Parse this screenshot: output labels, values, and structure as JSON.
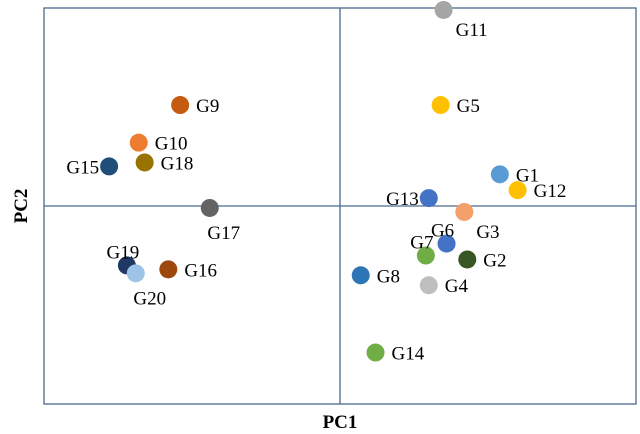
{
  "chart_data": {
    "type": "scatter",
    "title": "",
    "xlabel": "PC1",
    "ylabel": "PC2",
    "xlim": [
      -10,
      10
    ],
    "ylim": [
      -10,
      10
    ],
    "grid": false,
    "legend": "none",
    "axis_color": "#4a6b8f",
    "points": [
      {
        "label": "G1",
        "x": 5.4,
        "y": 1.6,
        "color": "#5b9bd5",
        "label_side": "right"
      },
      {
        "label": "G2",
        "x": 4.3,
        "y": -2.7,
        "color": "#375623",
        "label_side": "right"
      },
      {
        "label": "G3",
        "x": 4.2,
        "y": -0.3,
        "color": "#f4a06b",
        "label_side": "below-right"
      },
      {
        "label": "G4",
        "x": 3.0,
        "y": -4.0,
        "color": "#bfbfbf",
        "label_side": "right"
      },
      {
        "label": "G5",
        "x": 3.4,
        "y": 5.1,
        "color": "#ffc000",
        "label_side": "right"
      },
      {
        "label": "G6",
        "x": 3.6,
        "y": -1.9,
        "color": "#4472c4",
        "label_side": "above-left"
      },
      {
        "label": "G7",
        "x": 2.9,
        "y": -2.5,
        "color": "#70ad47",
        "label_side": "above-left"
      },
      {
        "label": "G8",
        "x": 0.7,
        "y": -3.5,
        "color": "#2e75b6",
        "label_side": "right"
      },
      {
        "label": "G9",
        "x": -5.4,
        "y": 5.1,
        "color": "#c55a11",
        "label_side": "right"
      },
      {
        "label": "G10",
        "x": -6.8,
        "y": 3.2,
        "color": "#ed7d31",
        "label_side": "right"
      },
      {
        "label": "G11",
        "x": 3.5,
        "y": 9.9,
        "color": "#a5a5a5",
        "label_side": "below-right"
      },
      {
        "label": "G12",
        "x": 6.0,
        "y": 0.8,
        "color": "#ffc000",
        "label_side": "right"
      },
      {
        "label": "G13",
        "x": 3.0,
        "y": 0.4,
        "color": "#4472c4",
        "label_side": "left"
      },
      {
        "label": "G14",
        "x": 1.2,
        "y": -7.4,
        "color": "#70ad47",
        "label_side": "right"
      },
      {
        "label": "G15",
        "x": -7.8,
        "y": 2.0,
        "color": "#1f4e79",
        "label_side": "left"
      },
      {
        "label": "G16",
        "x": -5.8,
        "y": -3.2,
        "color": "#9e480e",
        "label_side": "right"
      },
      {
        "label": "G17",
        "x": -4.4,
        "y": -0.1,
        "color": "#636363",
        "label_side": "below"
      },
      {
        "label": "G18",
        "x": -6.6,
        "y": 2.2,
        "color": "#997300",
        "label_side": "right"
      },
      {
        "label": "G19",
        "x": -7.2,
        "y": -3.0,
        "color": "#203864",
        "label_side": "above-left"
      },
      {
        "label": "G20",
        "x": -6.9,
        "y": -3.4,
        "color": "#9dc3e6",
        "label_side": "below"
      }
    ]
  }
}
